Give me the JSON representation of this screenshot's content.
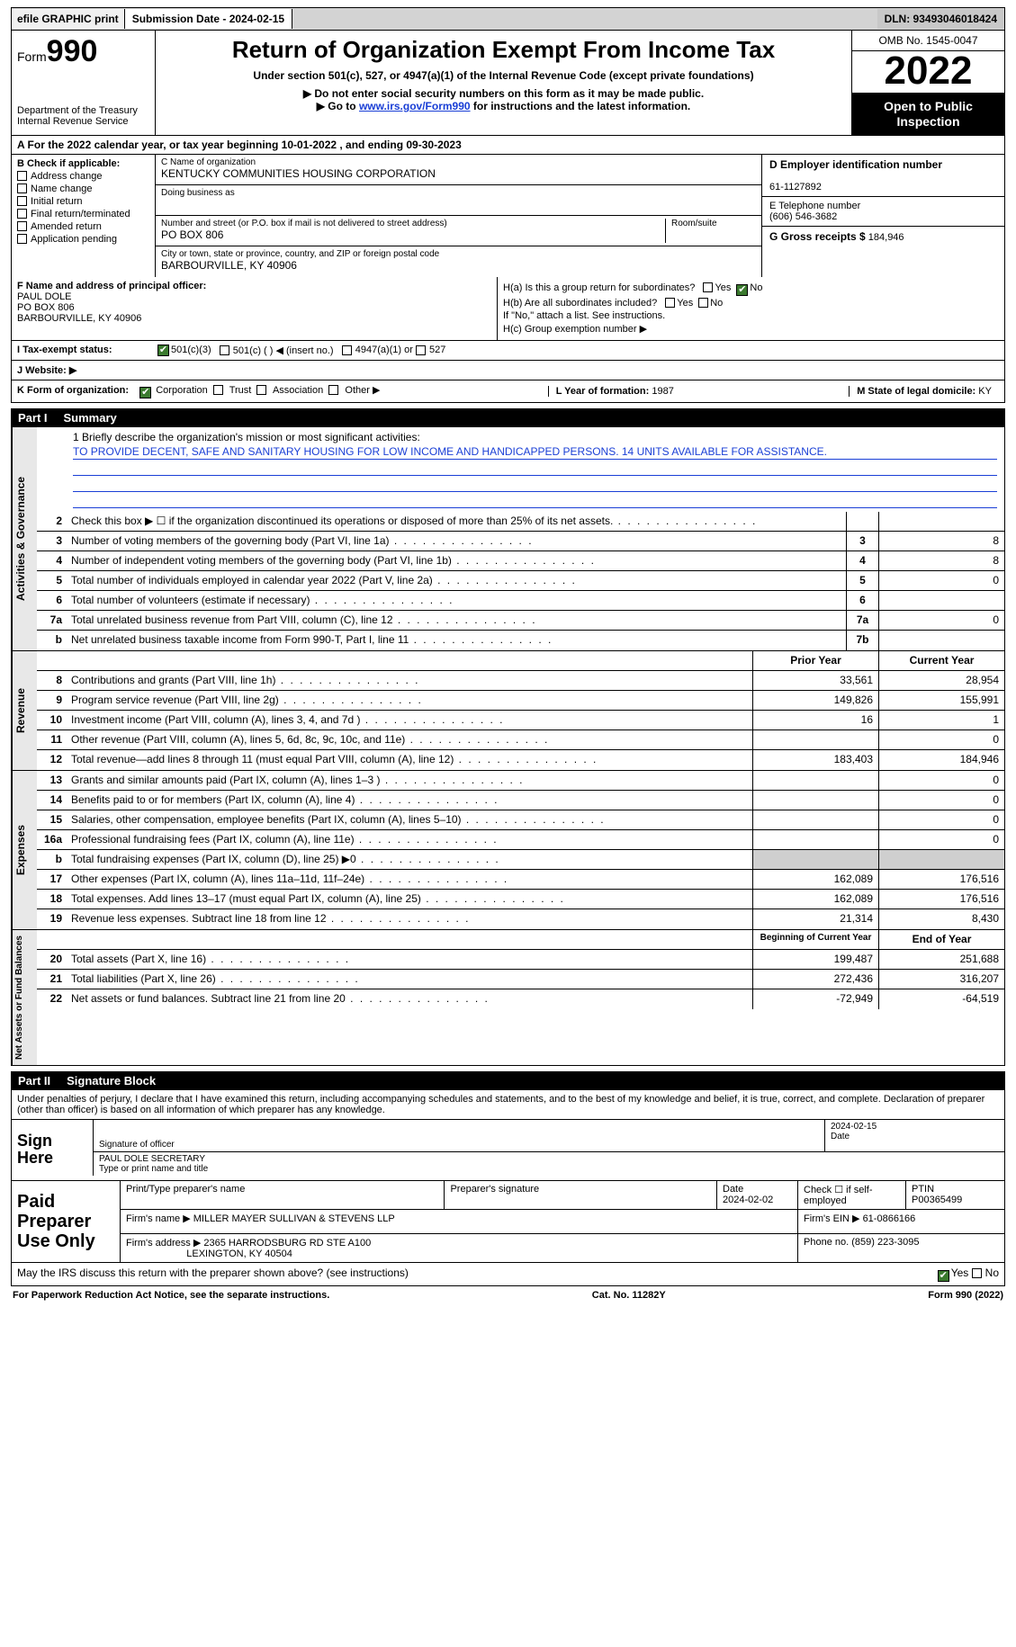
{
  "topbar": {
    "efile": "efile GRAPHIC print",
    "submission": "Submission Date - 2024-02-15",
    "dln": "DLN: 93493046018424"
  },
  "header": {
    "form_word": "Form",
    "form_num": "990",
    "dept": "Department of the Treasury",
    "irs": "Internal Revenue Service",
    "title": "Return of Organization Exempt From Income Tax",
    "sub1": "Under section 501(c), 527, or 4947(a)(1) of the Internal Revenue Code (except private foundations)",
    "sub2": "▶ Do not enter social security numbers on this form as it may be made public.",
    "sub3_pre": "▶ Go to ",
    "sub3_link": "www.irs.gov/Form990",
    "sub3_post": " for instructions and the latest information.",
    "omb": "OMB No. 1545-0047",
    "year": "2022",
    "inspect": "Open to Public Inspection"
  },
  "rowA": "A For the 2022 calendar year, or tax year beginning 10-01-2022   , and ending 09-30-2023",
  "colB": {
    "title": "B Check if applicable:",
    "items": [
      "Address change",
      "Name change",
      "Initial return",
      "Final return/terminated",
      "Amended return",
      "Application pending"
    ]
  },
  "colC": {
    "name_lab": "C Name of organization",
    "name": "KENTUCKY COMMUNITIES HOUSING CORPORATION",
    "dba_lab": "Doing business as",
    "dba": "",
    "addr_lab": "Number and street (or P.O. box if mail is not delivered to street address)",
    "room_lab": "Room/suite",
    "addr": "PO BOX 806",
    "city_lab": "City or town, state or province, country, and ZIP or foreign postal code",
    "city": "BARBOURVILLE, KY  40906"
  },
  "colD": {
    "ein_lab": "D Employer identification number",
    "ein": "61-1127892",
    "tel_lab": "E Telephone number",
    "tel": "(606) 546-3682",
    "gross_lab": "G Gross receipts $",
    "gross": "184,946"
  },
  "rowF": {
    "lab": "F Name and address of principal officer:",
    "name": "PAUL DOLE",
    "addr1": "PO BOX 806",
    "addr2": "BARBOURVILLE, KY  40906"
  },
  "rowH": {
    "ha": "H(a)  Is this a group return for subordinates?",
    "hb": "H(b)  Are all subordinates included?",
    "hb_note": "If \"No,\" attach a list. See instructions.",
    "hc": "H(c)  Group exemption number ▶",
    "yes": "Yes",
    "no": "No"
  },
  "rowI": {
    "lab": "I   Tax-exempt status:",
    "o1": "501(c)(3)",
    "o2": "501(c) (  ) ◀ (insert no.)",
    "o3": "4947(a)(1) or",
    "o4": "527"
  },
  "rowJ": {
    "lab": "J   Website: ▶"
  },
  "rowK": {
    "k": "K Form of organization:",
    "opts": [
      "Corporation",
      "Trust",
      "Association",
      "Other ▶"
    ],
    "l_lab": "L Year of formation:",
    "l_val": "1987",
    "m_lab": "M State of legal domicile:",
    "m_val": "KY"
  },
  "part1": {
    "hdr": "Part I",
    "title": "Summary"
  },
  "mission": {
    "lab": "1   Briefly describe the organization's mission or most significant activities:",
    "text": "TO PROVIDE DECENT, SAFE AND SANITARY HOUSING FOR LOW INCOME AND HANDICAPPED PERSONS. 14 UNITS AVAILABLE FOR ASSISTANCE."
  },
  "lines_gov": [
    {
      "n": "2",
      "d": "Check this box ▶ ☐ if the organization discontinued its operations or disposed of more than 25% of its net assets.",
      "box": "",
      "c1": "",
      "c2": ""
    },
    {
      "n": "3",
      "d": "Number of voting members of the governing body (Part VI, line 1a)",
      "box": "3",
      "c1": "",
      "c2": "8"
    },
    {
      "n": "4",
      "d": "Number of independent voting members of the governing body (Part VI, line 1b)",
      "box": "4",
      "c1": "",
      "c2": "8"
    },
    {
      "n": "5",
      "d": "Total number of individuals employed in calendar year 2022 (Part V, line 2a)",
      "box": "5",
      "c1": "",
      "c2": "0"
    },
    {
      "n": "6",
      "d": "Total number of volunteers (estimate if necessary)",
      "box": "6",
      "c1": "",
      "c2": ""
    },
    {
      "n": "7a",
      "d": "Total unrelated business revenue from Part VIII, column (C), line 12",
      "box": "7a",
      "c1": "",
      "c2": "0"
    },
    {
      "n": "b",
      "d": "Net unrelated business taxable income from Form 990-T, Part I, line 11",
      "box": "7b",
      "c1": "",
      "c2": ""
    }
  ],
  "rev_hdr": {
    "c1": "Prior Year",
    "c2": "Current Year"
  },
  "lines_rev": [
    {
      "n": "8",
      "d": "Contributions and grants (Part VIII, line 1h)",
      "c1": "33,561",
      "c2": "28,954"
    },
    {
      "n": "9",
      "d": "Program service revenue (Part VIII, line 2g)",
      "c1": "149,826",
      "c2": "155,991"
    },
    {
      "n": "10",
      "d": "Investment income (Part VIII, column (A), lines 3, 4, and 7d )",
      "c1": "16",
      "c2": "1"
    },
    {
      "n": "11",
      "d": "Other revenue (Part VIII, column (A), lines 5, 6d, 8c, 9c, 10c, and 11e)",
      "c1": "",
      "c2": "0"
    },
    {
      "n": "12",
      "d": "Total revenue—add lines 8 through 11 (must equal Part VIII, column (A), line 12)",
      "c1": "183,403",
      "c2": "184,946"
    }
  ],
  "lines_exp": [
    {
      "n": "13",
      "d": "Grants and similar amounts paid (Part IX, column (A), lines 1–3 )",
      "c1": "",
      "c2": "0"
    },
    {
      "n": "14",
      "d": "Benefits paid to or for members (Part IX, column (A), line 4)",
      "c1": "",
      "c2": "0"
    },
    {
      "n": "15",
      "d": "Salaries, other compensation, employee benefits (Part IX, column (A), lines 5–10)",
      "c1": "",
      "c2": "0"
    },
    {
      "n": "16a",
      "d": "Professional fundraising fees (Part IX, column (A), line 11e)",
      "c1": "",
      "c2": "0"
    },
    {
      "n": "b",
      "d": "Total fundraising expenses (Part IX, column (D), line 25) ▶0",
      "c1": "shade",
      "c2": "shade"
    },
    {
      "n": "17",
      "d": "Other expenses (Part IX, column (A), lines 11a–11d, 11f–24e)",
      "c1": "162,089",
      "c2": "176,516"
    },
    {
      "n": "18",
      "d": "Total expenses. Add lines 13–17 (must equal Part IX, column (A), line 25)",
      "c1": "162,089",
      "c2": "176,516"
    },
    {
      "n": "19",
      "d": "Revenue less expenses. Subtract line 18 from line 12",
      "c1": "21,314",
      "c2": "8,430"
    }
  ],
  "net_hdr": {
    "c1": "Beginning of Current Year",
    "c2": "End of Year"
  },
  "lines_net": [
    {
      "n": "20",
      "d": "Total assets (Part X, line 16)",
      "c1": "199,487",
      "c2": "251,688"
    },
    {
      "n": "21",
      "d": "Total liabilities (Part X, line 26)",
      "c1": "272,436",
      "c2": "316,207"
    },
    {
      "n": "22",
      "d": "Net assets or fund balances. Subtract line 21 from line 20",
      "c1": "-72,949",
      "c2": "-64,519"
    }
  ],
  "vtabs": {
    "gov": "Activities & Governance",
    "rev": "Revenue",
    "exp": "Expenses",
    "net": "Net Assets or Fund Balances"
  },
  "part2": {
    "hdr": "Part II",
    "title": "Signature Block"
  },
  "sig": {
    "decl": "Under penalties of perjury, I declare that I have examined this return, including accompanying schedules and statements, and to the best of my knowledge and belief, it is true, correct, and complete. Declaration of preparer (other than officer) is based on all information of which preparer has any knowledge.",
    "sign_here": "Sign Here",
    "sig_lab": "Signature of officer",
    "date": "2024-02-15",
    "date_lab": "Date",
    "name": "PAUL DOLE  SECRETARY",
    "name_lab": "Type or print name and title"
  },
  "prep": {
    "lab": "Paid Preparer Use Only",
    "r1": {
      "a": "Print/Type preparer's name",
      "b": "Preparer's signature",
      "c": "Date",
      "c_val": "2024-02-02",
      "d": "Check ☐ if self-employed",
      "e": "PTIN",
      "e_val": "P00365499"
    },
    "r2": {
      "a": "Firm's name    ▶",
      "a_val": "MILLER MAYER SULLIVAN & STEVENS LLP",
      "b": "Firm's EIN ▶",
      "b_val": "61-0866166"
    },
    "r3": {
      "a": "Firm's address ▶",
      "a_val": "2365 HARRODSBURG RD STE A100",
      "a_val2": "LEXINGTON, KY  40504",
      "b": "Phone no.",
      "b_val": "(859) 223-3095"
    }
  },
  "lastrow": {
    "q": "May the IRS discuss this return with the preparer shown above? (see instructions)",
    "yes": "Yes",
    "no": "No"
  },
  "footer": {
    "left": "For Paperwork Reduction Act Notice, see the separate instructions.",
    "mid": "Cat. No. 11282Y",
    "right": "Form 990 (2022)"
  }
}
